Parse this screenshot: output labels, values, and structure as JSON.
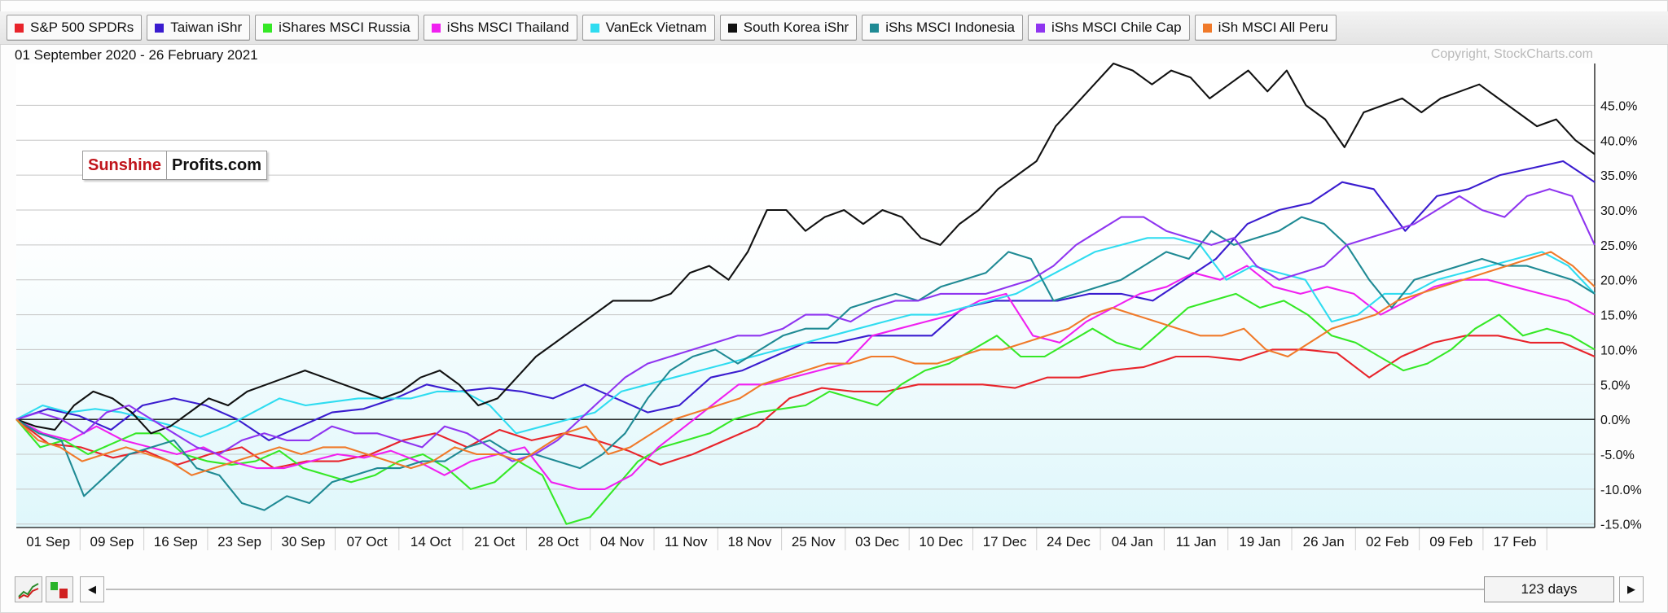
{
  "legend": [
    {
      "label": "S&P 500 SPDRs",
      "color": "#e8242b"
    },
    {
      "label": "Taiwan iShr",
      "color": "#3a1ccf"
    },
    {
      "label": "iShares MSCI Russia",
      "color": "#35e826"
    },
    {
      "label": "iShs MSCI Thailand",
      "color": "#f020f0"
    },
    {
      "label": "VanEck Vietnam",
      "color": "#2fdcf0"
    },
    {
      "label": "South Korea iShr",
      "color": "#111111"
    },
    {
      "label": "iShs MSCI Indonesia",
      "color": "#1f8a94"
    },
    {
      "label": "iShs MSCI Chile Cap",
      "color": "#8f35f0"
    },
    {
      "label": "iSh MSCI All Peru",
      "color": "#f07a2a"
    }
  ],
  "date_range": "01 September 2020 - 26 February 2021",
  "copyright": "Copyright, StockCharts.com",
  "logo": {
    "part1": "Sunshine",
    "part2": "Profits.com"
  },
  "bottom": {
    "days": "123 days",
    "left_arrow": "◀",
    "right_arrow": "▶"
  },
  "chart_data": {
    "type": "line",
    "x_ticks": [
      "01 Sep",
      "09 Sep",
      "16 Sep",
      "23 Sep",
      "30 Sep",
      "07 Oct",
      "14 Oct",
      "21 Oct",
      "28 Oct",
      "04 Nov",
      "11 Nov",
      "18 Nov",
      "25 Nov",
      "03 Dec",
      "10 Dec",
      "17 Dec",
      "24 Dec",
      "04 Jan",
      "11 Jan",
      "19 Jan",
      "26 Jan",
      "02 Feb",
      "09 Feb",
      "17 Feb"
    ],
    "y_ticks": [
      "45.0%",
      "40.0%",
      "35.0%",
      "30.0%",
      "25.0%",
      "20.0%",
      "15.0%",
      "10.0%",
      "5.0%",
      "0.0%",
      "-5.0%",
      "-10.0%",
      "-15.0%"
    ],
    "ylim": [
      -15.5,
      51
    ],
    "grid": true,
    "colors": {
      "plot_bg_top": "#ffffff",
      "plot_bg_bottom": "#dff7fb",
      "grid": "#c6c6c6",
      "zero_line": "#111111"
    },
    "series": [
      {
        "name": "S&P 500 SPDRs",
        "color": "#e8242b",
        "values": [
          0,
          -3.5,
          -4,
          -5.5,
          -4.5,
          -6.5,
          -5,
          -4,
          -7,
          -6,
          -6,
          -5,
          -3,
          -2,
          -4,
          -1.5,
          -3,
          -2,
          -3,
          -4.5,
          -6.5,
          -5,
          -3,
          -1,
          3,
          4.5,
          4,
          4,
          5,
          5,
          5,
          4.5,
          6,
          6,
          7,
          7.5,
          9,
          9,
          8.5,
          10,
          10,
          9.5,
          6,
          9,
          11,
          12,
          12,
          11,
          11,
          9
        ]
      },
      {
        "name": "Taiwan iShr",
        "color": "#3a1ccf",
        "values": [
          0,
          1.5,
          0.5,
          -1.5,
          2,
          3,
          2,
          0,
          -3,
          -1,
          1,
          1.5,
          3,
          5,
          4,
          4.5,
          4,
          3,
          5,
          3,
          1,
          2,
          6,
          7,
          9,
          11,
          11,
          12,
          12,
          12,
          16,
          17,
          17,
          17,
          18,
          18,
          17,
          20,
          23,
          28,
          30,
          31,
          34,
          33,
          27,
          32,
          33,
          35,
          36,
          37,
          34
        ]
      },
      {
        "name": "iShares MSCI Russia",
        "color": "#35e826",
        "values": [
          0,
          -4,
          -3,
          -5,
          -3.5,
          -2,
          -2,
          -5,
          -6,
          -6.5,
          -6,
          -4.5,
          -7,
          -8,
          -9,
          -8,
          -6,
          -5,
          -7,
          -10,
          -9,
          -6,
          -8,
          -15,
          -14,
          -10,
          -6,
          -4,
          -3,
          -2,
          0,
          1,
          1.5,
          2,
          4,
          3,
          2,
          5,
          7,
          8,
          10,
          12,
          9,
          9,
          11,
          13,
          11,
          10,
          13,
          16,
          17,
          18,
          16,
          17,
          15,
          12,
          11,
          9,
          7,
          8,
          10,
          13,
          15,
          12,
          13,
          12,
          10
        ]
      },
      {
        "name": "iShs MSCI Thailand",
        "color": "#f020f0",
        "values": [
          0,
          -2,
          -3,
          -1,
          -3,
          -4,
          -5,
          -4,
          -6,
          -7,
          -7,
          -6,
          -5,
          -5.5,
          -4.5,
          -6,
          -8,
          -6,
          -5,
          -4,
          -9,
          -10,
          -10,
          -8,
          -4,
          -1,
          2,
          5,
          5,
          6,
          7,
          8,
          12,
          13,
          14,
          15,
          17,
          18,
          12,
          11,
          14,
          16,
          18,
          19,
          21,
          20,
          22,
          19,
          18,
          19,
          18,
          15,
          17,
          19,
          20,
          20,
          19,
          18,
          17,
          15
        ]
      },
      {
        "name": "VanEck Vietnam",
        "color": "#2fdcf0",
        "values": [
          0,
          2,
          1,
          1.5,
          1,
          0,
          -1,
          -2.5,
          -1,
          1,
          3,
          2,
          2.5,
          3,
          3,
          3,
          4,
          4,
          2,
          -2,
          -1,
          0,
          1,
          4,
          5,
          6,
          7,
          8,
          9,
          10,
          11,
          12,
          13,
          14,
          15,
          15,
          16,
          17,
          18,
          20,
          22,
          24,
          25,
          26,
          26,
          25,
          20,
          22,
          21,
          20,
          14,
          15,
          18,
          18,
          20,
          21,
          22,
          23,
          24,
          22,
          18
        ]
      },
      {
        "name": "South Korea iShr",
        "color": "#111111",
        "values": [
          0,
          -1,
          -1.5,
          2,
          4,
          3,
          1,
          -2,
          -1,
          1,
          3,
          2,
          4,
          5,
          6,
          7,
          6,
          5,
          4,
          3,
          4,
          6,
          7,
          5,
          2,
          3,
          6,
          9,
          11,
          13,
          15,
          17,
          17,
          17,
          18,
          21,
          22,
          20,
          24,
          30,
          30,
          27,
          29,
          30,
          28,
          30,
          29,
          26,
          25,
          28,
          30,
          33,
          35,
          37,
          42,
          45,
          48,
          51,
          50,
          48,
          50,
          49,
          46,
          48,
          50,
          47,
          50,
          45,
          43,
          39,
          44,
          45,
          46,
          44,
          46,
          47,
          48,
          46,
          44,
          42,
          43,
          40,
          38
        ]
      },
      {
        "name": "iShs MSCI Indonesia",
        "color": "#1f8a94",
        "values": [
          0,
          -2,
          -3,
          -11,
          -8,
          -5,
          -4,
          -3,
          -7,
          -8,
          -12,
          -13,
          -11,
          -12,
          -9,
          -8,
          -7,
          -7,
          -6,
          -6,
          -4,
          -3,
          -5,
          -5,
          -6,
          -7,
          -5,
          -2,
          3,
          7,
          9,
          10,
          8,
          10,
          12,
          13,
          13,
          16,
          17,
          18,
          17,
          19,
          20,
          21,
          24,
          23,
          17,
          18,
          19,
          20,
          22,
          24,
          23,
          27,
          25,
          26,
          27,
          29,
          28,
          25,
          20,
          16,
          20,
          21,
          22,
          23,
          22,
          22,
          21,
          20,
          18
        ]
      },
      {
        "name": "iShs MSCI Chile Cap",
        "color": "#8f35f0",
        "values": [
          0,
          1,
          0,
          -2,
          1,
          2,
          0,
          -2,
          -4,
          -5,
          -3,
          -2,
          -3,
          -3,
          -1,
          -2,
          -2,
          -3,
          -4,
          -1,
          -2,
          -4,
          -6,
          -5,
          -3,
          0,
          3,
          6,
          8,
          9,
          10,
          11,
          12,
          12,
          13,
          15,
          15,
          14,
          16,
          17,
          17,
          18,
          18,
          18,
          19,
          20,
          22,
          25,
          27,
          29,
          29,
          27,
          26,
          25,
          26,
          22,
          20,
          21,
          22,
          25,
          26,
          27,
          28,
          30,
          32,
          30,
          29,
          32,
          33,
          32,
          25
        ]
      },
      {
        "name": "iSh MSCI All Peru",
        "color": "#f07a2a",
        "values": [
          0,
          -3,
          -4,
          -6,
          -5,
          -4,
          -5,
          -6,
          -8,
          -7,
          -6,
          -5,
          -4,
          -5,
          -4,
          -4,
          -5,
          -6,
          -7,
          -6,
          -4,
          -5,
          -5,
          -6,
          -4,
          -2,
          -1,
          -5,
          -4,
          -2,
          0,
          1,
          2,
          3,
          5,
          6,
          7,
          8,
          8,
          9,
          9,
          8,
          8,
          9,
          10,
          10,
          11,
          12,
          13,
          15,
          16,
          15,
          14,
          13,
          12,
          12,
          13,
          10,
          9,
          11,
          13,
          14,
          15,
          17,
          18,
          19,
          20,
          21,
          22,
          23,
          24,
          22,
          19
        ]
      }
    ]
  }
}
